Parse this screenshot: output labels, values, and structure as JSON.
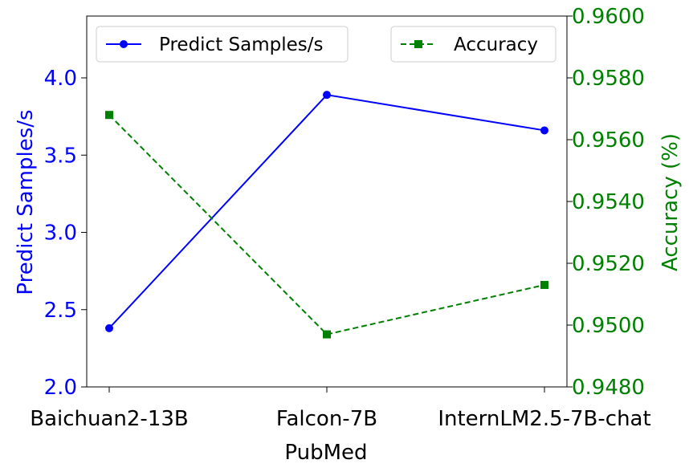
{
  "chart_data": {
    "type": "line",
    "categories": [
      "Baichuan2-13B",
      "Falcon-7B",
      "InternLM2.5-7B-chat"
    ],
    "xlabel": "PubMed",
    "series": [
      {
        "name": "Predict Samples/s",
        "axis": "left",
        "color": "#0000ff",
        "marker": "circle",
        "linestyle": "solid",
        "values": [
          2.38,
          3.89,
          3.66
        ]
      },
      {
        "name": "Accuracy",
        "axis": "right",
        "color": "#008000",
        "marker": "square",
        "linestyle": "dashed",
        "values": [
          0.9568,
          0.9497,
          0.9513
        ]
      }
    ],
    "y_left": {
      "label": "Predict Samples/s",
      "range": [
        2.0,
        4.4
      ],
      "ticks": [
        "2.0",
        "2.5",
        "3.0",
        "3.5",
        "4.0"
      ],
      "color": "#0000ff"
    },
    "y_right": {
      "label": "Accuracy (%)",
      "range": [
        0.948,
        0.96
      ],
      "ticks": [
        "0.9480",
        "0.9500",
        "0.9520",
        "0.9540",
        "0.9560",
        "0.9580",
        "0.9600"
      ],
      "color": "#008000"
    },
    "grid": false,
    "legend": [
      {
        "series": 0,
        "placement": "top-left"
      },
      {
        "series": 1,
        "placement": "top-right"
      }
    ]
  }
}
